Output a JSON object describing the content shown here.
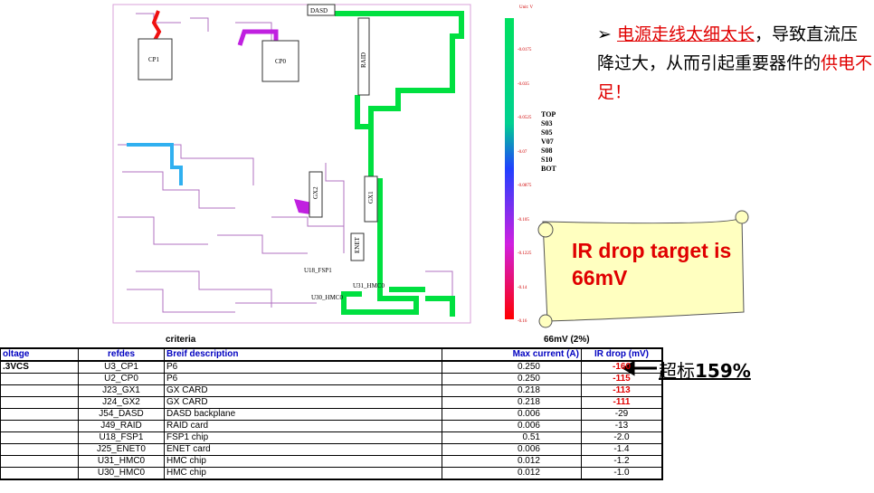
{
  "pcb": {
    "labels": [
      "DASD",
      "CP1",
      "CP0",
      "RAID",
      "GX2",
      "GX1",
      "ENET",
      "U18_FSP1",
      "U31_HMC0",
      "U30_HMC0"
    ]
  },
  "colorbar": {
    "unit": "Unit: V",
    "ticks": [
      "-0.0175",
      "-0.035",
      "-0.0525",
      "-0.07",
      "-0.0875",
      "-0.105",
      "-0.1225",
      "-0.14",
      "-0.16"
    ]
  },
  "layers": [
    "TOP",
    "S03",
    "S05",
    "V07",
    "S08",
    "S10",
    "BOT"
  ],
  "callout": {
    "marker": "➢",
    "parts": [
      "电源走线太细太长",
      "，导致直流压降过大，从而引起重要器件的",
      "供电不足",
      "！"
    ]
  },
  "scroll": {
    "text": "IR drop target is 66mV"
  },
  "table": {
    "criteria_label": "criteria",
    "criteria_value": "66mV (2%)",
    "header": [
      "oltage",
      "refdes",
      "Breif description",
      "Max current (A)",
      "IR drop (mV)"
    ],
    "rows": [
      [
        ".3VCS",
        "U3_CP1",
        "P6",
        "0.250",
        "-160"
      ],
      [
        "",
        "U2_CP0",
        "P6",
        "0.250",
        "-115"
      ],
      [
        "",
        "J23_GX1",
        "GX CARD",
        "0.218",
        "-113"
      ],
      [
        "",
        "J24_GX2",
        "GX CARD",
        "0.218",
        "-111"
      ],
      [
        "",
        "J54_DASD",
        "DASD backplane",
        "0.006",
        "-29"
      ],
      [
        "",
        "J49_RAID",
        "RAID card",
        "0.006",
        "-13"
      ],
      [
        "",
        "U18_FSP1",
        "FSP1 chip",
        "0.51",
        "-2.0"
      ],
      [
        "",
        "J25_ENET0",
        "ENET card",
        "0.006",
        "-1.4"
      ],
      [
        "",
        "U31_HMC0",
        "HMC chip",
        "0.012",
        "-1.2"
      ],
      [
        "",
        "U30_HMC0",
        "HMC chip",
        "0.012",
        "-1.0"
      ]
    ]
  },
  "annotation": {
    "text_cn": "超标",
    "text_pct": "159%"
  }
}
